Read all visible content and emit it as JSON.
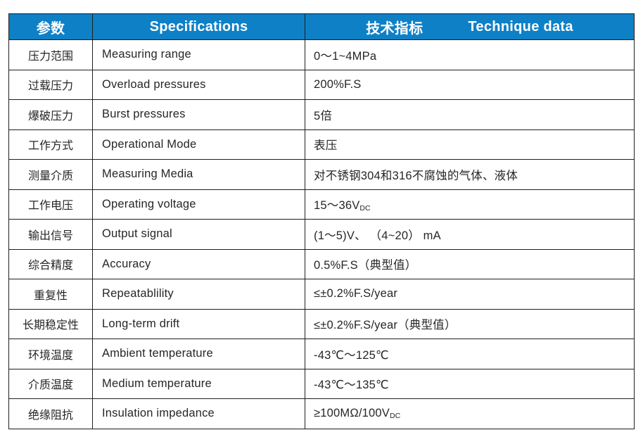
{
  "table": {
    "header": {
      "param": "参数",
      "specifications": "Specifications",
      "technique_zh": "技术指标",
      "technique_en": "Technique data",
      "bg_color": "#0e80c6",
      "text_color": "#ffffff"
    },
    "border_color": "#1f1f1f",
    "rows": [
      {
        "param": "压力范围",
        "spec": "Measuring range",
        "value": [
          {
            "t": "0～1~4MPa"
          }
        ]
      },
      {
        "param": "过载压力",
        "spec": "Overload pressures",
        "value": [
          {
            "t": "200%F.S"
          }
        ]
      },
      {
        "param": "爆破压力",
        "spec": "Burst pressures",
        "value": [
          {
            "t": "5倍"
          }
        ]
      },
      {
        "param": "工作方式",
        "spec": "Operational Mode",
        "value": [
          {
            "t": "表压"
          }
        ]
      },
      {
        "param": "测量介质",
        "spec": "Measuring Media",
        "value": [
          {
            "t": "对不锈钢304和316不腐蚀的气体、液体"
          }
        ]
      },
      {
        "param": "工作电压",
        "spec": "Operating voltage",
        "value": [
          {
            "t": "15～36V"
          },
          {
            "t": "DC",
            "sub": true
          }
        ]
      },
      {
        "param": "输出信号",
        "spec": "Output signal",
        "value": [
          {
            "t": "(1～5)V、 （4~20） mA"
          }
        ]
      },
      {
        "param": "综合精度",
        "spec": "Accuracy",
        "value": [
          {
            "t": "0.5%F.S（典型值）"
          }
        ]
      },
      {
        "param": "重复性",
        "spec": "Repeatablility",
        "value": [
          {
            "t": "≤±0.2%F.S/year"
          }
        ]
      },
      {
        "param": "长期稳定性",
        "spec": "Long-term drift",
        "value": [
          {
            "t": "≤±0.2%F.S/year（典型值）"
          }
        ]
      },
      {
        "param": "环境温度",
        "spec": "Ambient temperature",
        "value": [
          {
            "t": "-43℃～125℃"
          }
        ]
      },
      {
        "param": "介质温度",
        "spec": "Medium temperature",
        "value": [
          {
            "t": "-43℃～135℃"
          }
        ]
      },
      {
        "param": "绝缘阻抗",
        "spec": "Insulation impedance",
        "value": [
          {
            "t": "≥100MΩ/100V"
          },
          {
            "t": "DC",
            "sub": true
          }
        ]
      }
    ]
  }
}
